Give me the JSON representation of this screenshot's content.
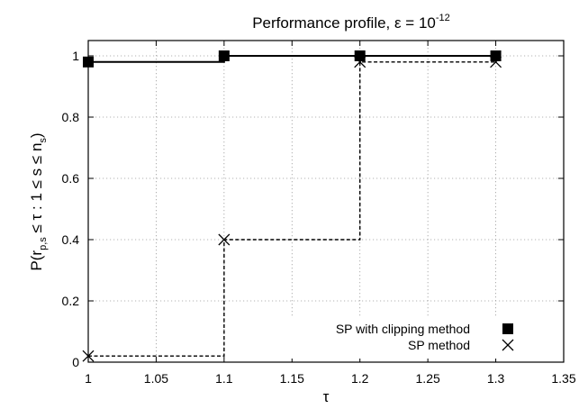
{
  "chart_data": {
    "type": "line",
    "title": {
      "main": "Performance profile, ",
      "epsilon": "ε = 10",
      "exponent": "-12"
    },
    "xlabel": "τ",
    "ylabel": {
      "part1": "P(r",
      "sub1": "p,s",
      "part2": " ≤ τ : 1 ≤ s ≤ n",
      "sub2": "s",
      "part3": ")"
    },
    "xlim": [
      1,
      1.35
    ],
    "ylim": [
      0,
      1.05
    ],
    "xticks": [
      "1",
      "1.05",
      "1.1",
      "1.15",
      "1.2",
      "1.25",
      "1.3",
      "1.35"
    ],
    "yticks": [
      "0",
      "0.2",
      "0.4",
      "0.6",
      "0.8",
      "1"
    ],
    "grid": true,
    "legend_position": "bottom-right",
    "series": [
      {
        "name": "SP with clipping method",
        "style": "solid-step",
        "marker": "filled-square",
        "color": "#000000",
        "x": [
          1.0,
          1.1,
          1.2,
          1.3
        ],
        "y": [
          0.98,
          1.0,
          1.0,
          1.0
        ]
      },
      {
        "name": "SP method",
        "style": "dashed-step",
        "marker": "cross",
        "color": "#000000",
        "x": [
          1.0,
          1.1,
          1.2,
          1.3
        ],
        "y": [
          0.02,
          0.4,
          0.98,
          0.98
        ]
      }
    ]
  }
}
